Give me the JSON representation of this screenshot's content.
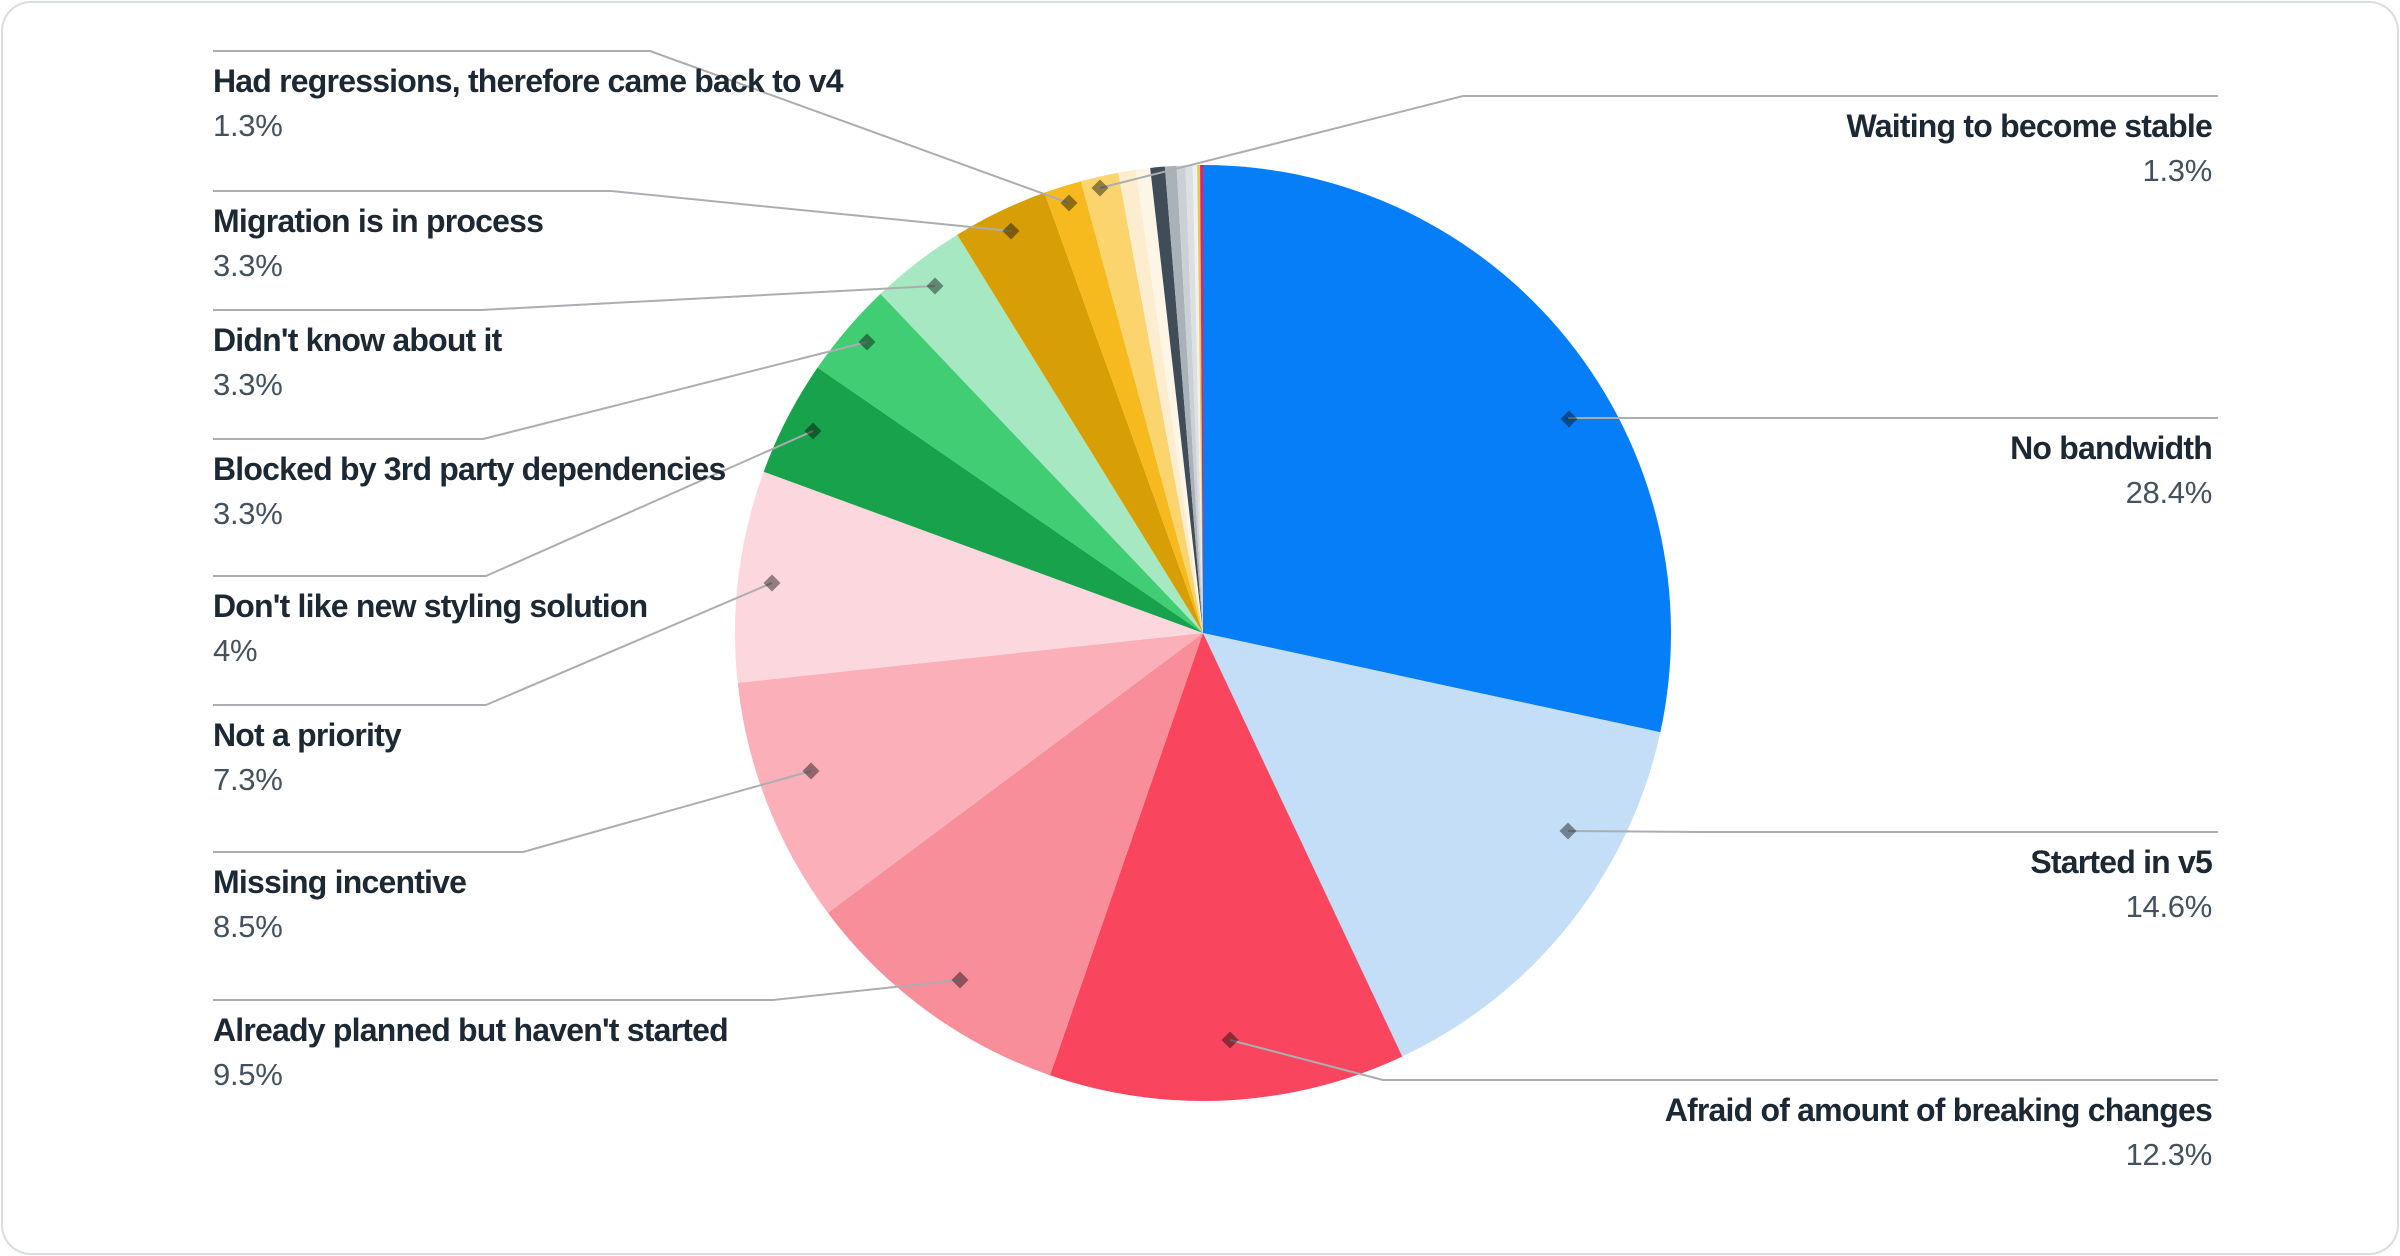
{
  "chart_data": {
    "type": "pie",
    "title": "",
    "legend_position": "callouts",
    "total_percent": 100,
    "slices": [
      {
        "label": "No bandwidth",
        "value": 28.4,
        "pct_label": "28.4%",
        "color": "#057EF7",
        "callout_side": "right"
      },
      {
        "label": "Started in v5",
        "value": 14.6,
        "pct_label": "14.6%",
        "color": "#C4DEF8",
        "callout_side": "right"
      },
      {
        "label": "Afraid of amount of breaking changes",
        "value": 12.3,
        "pct_label": "12.3%",
        "color": "#F9455E",
        "callout_side": "right"
      },
      {
        "label": "Already planned but haven't started",
        "value": 9.5,
        "pct_label": "9.5%",
        "color": "#F98E9B",
        "callout_side": "left"
      },
      {
        "label": "Missing incentive",
        "value": 8.5,
        "pct_label": "8.5%",
        "color": "#FAAFB9",
        "callout_side": "left"
      },
      {
        "label": "Not a priority",
        "value": 7.3,
        "pct_label": "7.3%",
        "color": "#FCD7DD",
        "callout_side": "left"
      },
      {
        "label": "Don't like new styling solution",
        "value": 4,
        "pct_label": "4%",
        "color": "#17A24B",
        "callout_side": "left"
      },
      {
        "label": "Blocked by 3rd party dependencies",
        "value": 3.3,
        "pct_label": "3.3%",
        "color": "#41CD73",
        "callout_side": "left"
      },
      {
        "label": "Didn't know about it",
        "value": 3.3,
        "pct_label": "3.3%",
        "color": "#A5E8C1",
        "callout_side": "left"
      },
      {
        "label": "Migration is in process",
        "value": 3.3,
        "pct_label": "3.3%",
        "color": "#D89E06",
        "callout_side": "left"
      },
      {
        "label": "Had regressions, therefore came back to v4",
        "value": 1.3,
        "pct_label": "1.3%",
        "color": "#F7BA1E",
        "callout_side": "left"
      },
      {
        "label": "Waiting to become stable",
        "value": 1.3,
        "pct_label": "1.3%",
        "color": "#FBD46E",
        "callout_side": "right"
      },
      {
        "label": "",
        "value": 0.6,
        "pct_label": "",
        "color": "#FCEDCE",
        "callout_side": null
      },
      {
        "label": "",
        "value": 0.5,
        "pct_label": "",
        "color": "#FDF6E7",
        "callout_side": null
      },
      {
        "label": "",
        "value": 0.5,
        "pct_label": "",
        "color": "#414C59",
        "callout_side": null
      },
      {
        "label": "",
        "value": 0.4,
        "pct_label": "",
        "color": "#A9B1B9",
        "callout_side": null
      },
      {
        "label": "",
        "value": 0.3,
        "pct_label": "",
        "color": "#CBD0D5",
        "callout_side": null
      },
      {
        "label": "",
        "value": 0.25,
        "pct_label": "",
        "color": "#DDE0E3",
        "callout_side": null
      },
      {
        "label": "",
        "value": 0.15,
        "pct_label": "",
        "color": "#EEF0F1",
        "callout_side": null
      },
      {
        "label": "",
        "value": 0.1,
        "pct_label": "",
        "color": "#DCD14E",
        "callout_side": null
      },
      {
        "label": "",
        "value": 0.1,
        "pct_label": "",
        "color": "#F51A60",
        "callout_side": null
      }
    ]
  },
  "style_colors": {
    "leader_line": "#ABADB0",
    "label_text": "#1D2835",
    "pct_text": "#44525F",
    "card_border": "#D9DDE0",
    "background": "#FFFFFF"
  }
}
